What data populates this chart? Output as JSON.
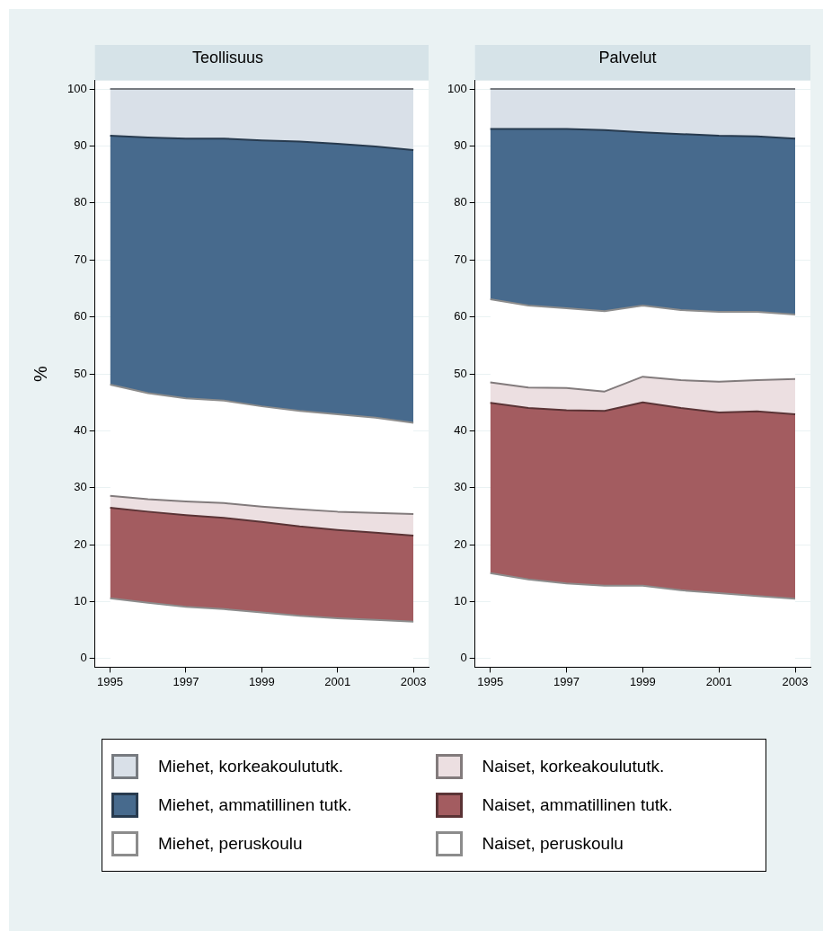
{
  "chart_data": [
    {
      "type": "area",
      "title": "Teollisuus",
      "ylabel": "%",
      "stacked": true,
      "x": [
        1995,
        1996,
        1997,
        1998,
        1999,
        2000,
        2001,
        2002,
        2003
      ],
      "xlim": [
        1994.6,
        2003.4
      ],
      "xticks": [
        1995,
        1997,
        1999,
        2001,
        2003
      ],
      "ylim": [
        -1.5,
        101.5
      ],
      "yticks": [
        0,
        10,
        20,
        30,
        40,
        50,
        60,
        70,
        80,
        90,
        100
      ],
      "grid": "y",
      "legend": "bottom",
      "series": [
        {
          "name": "Naiset, peruskoulu",
          "color": "#ffffff",
          "values": [
            10.6,
            9.8,
            9.1,
            8.7,
            8.1,
            7.5,
            7.1,
            6.8,
            6.5
          ]
        },
        {
          "name": "Naiset, ammatillinen tutk.",
          "color": "#a35c60",
          "values": [
            15.9,
            16.0,
            16.1,
            16.0,
            15.9,
            15.7,
            15.5,
            15.3,
            15.1
          ]
        },
        {
          "name": "Naiset, korkeakoulututk.",
          "color": "#ecdfe1",
          "values": [
            2.1,
            2.2,
            2.4,
            2.6,
            2.7,
            3.0,
            3.2,
            3.5,
            3.8
          ]
        },
        {
          "name": "Miehet, peruskoulu",
          "color": "#ffffff",
          "values": [
            19.5,
            18.6,
            18.1,
            18.0,
            17.6,
            17.3,
            17.1,
            16.7,
            16.0
          ]
        },
        {
          "name": "Miehet, ammatillinen tutk.",
          "color": "#476a8d",
          "values": [
            43.7,
            44.9,
            45.6,
            46.0,
            46.7,
            47.3,
            47.5,
            47.6,
            47.9
          ]
        },
        {
          "name": "Miehet, korkeakoulututk.",
          "color": "#d9e0e8",
          "values": [
            8.2,
            8.5,
            8.7,
            8.7,
            9.0,
            9.2,
            9.6,
            10.1,
            10.7
          ]
        }
      ]
    },
    {
      "type": "area",
      "title": "Palvelut",
      "stacked": true,
      "x": [
        1995,
        1996,
        1997,
        1998,
        1999,
        2000,
        2001,
        2002,
        2003
      ],
      "xlim": [
        1994.6,
        2003.4
      ],
      "xticks": [
        1995,
        1997,
        1999,
        2001,
        2003
      ],
      "ylim": [
        -1.5,
        101.5
      ],
      "yticks": [
        0,
        10,
        20,
        30,
        40,
        50,
        60,
        70,
        80,
        90,
        100
      ],
      "grid": "y",
      "legend": "bottom",
      "series": [
        {
          "name": "Naiset, peruskoulu",
          "color": "#ffffff",
          "values": [
            15.0,
            13.9,
            13.2,
            12.8,
            12.8,
            12.0,
            11.5,
            11.0,
            10.5
          ]
        },
        {
          "name": "Naiset, ammatillinen tutk.",
          "color": "#a35c60",
          "values": [
            29.9,
            30.1,
            30.4,
            30.7,
            32.2,
            32.0,
            31.7,
            32.4,
            32.4
          ]
        },
        {
          "name": "Naiset, korkeakoulututk.",
          "color": "#ecdfe1",
          "values": [
            3.6,
            3.6,
            3.9,
            3.4,
            4.5,
            4.9,
            5.4,
            5.5,
            6.2
          ]
        },
        {
          "name": "Miehet, peruskoulu",
          "color": "#ffffff",
          "values": [
            14.6,
            14.4,
            14.0,
            14.1,
            12.5,
            12.3,
            12.3,
            12.0,
            11.3
          ]
        },
        {
          "name": "Miehet, ammatillinen tutk.",
          "color": "#476a8d",
          "values": [
            29.9,
            31.0,
            31.5,
            31.8,
            30.4,
            30.9,
            30.9,
            30.8,
            30.9
          ]
        },
        {
          "name": "Miehet, korkeakoulututk.",
          "color": "#d9e0e8",
          "values": [
            7.0,
            7.0,
            7.0,
            7.2,
            7.6,
            7.9,
            8.2,
            8.3,
            8.7
          ]
        }
      ]
    }
  ]
}
